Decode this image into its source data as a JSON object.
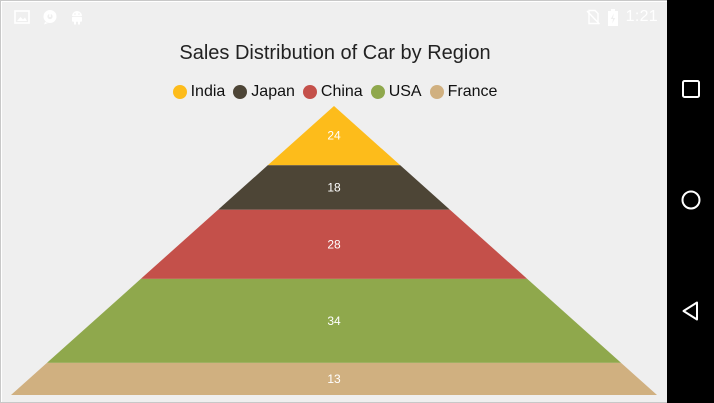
{
  "statusbar": {
    "time": "1:21",
    "icons": [
      "image-icon",
      "chat-icon",
      "android-icon",
      "no-sim-icon",
      "battery-icon"
    ]
  },
  "navbar": {
    "buttons": [
      "recents-square-icon",
      "home-circle-icon",
      "back-triangle-icon"
    ]
  },
  "chart_data": {
    "type": "pyramid",
    "title": "Sales Distribution of Car by Region",
    "legend_position": "top",
    "categories": [
      "India",
      "Japan",
      "China",
      "USA",
      "France"
    ],
    "values": [
      24,
      18,
      28,
      34,
      13
    ],
    "colors": [
      "#FDBC1B",
      "#4D4536",
      "#C4504A",
      "#8FA84C",
      "#D0B080"
    ],
    "label_color": "#ffffff"
  }
}
